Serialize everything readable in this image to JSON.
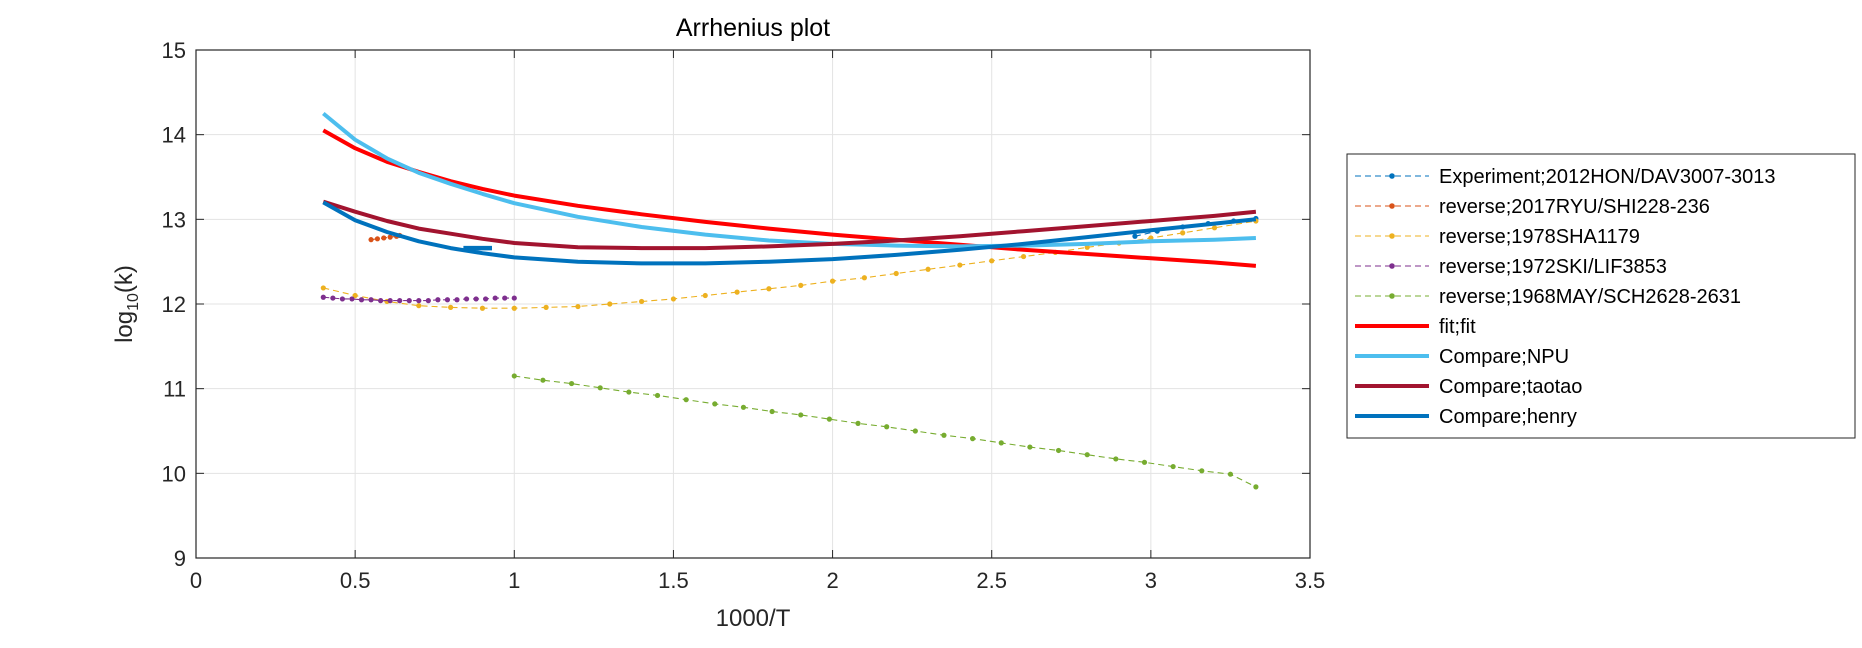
{
  "chart_data": {
    "type": "line",
    "title": "Arrhenius plot",
    "xlabel": "1000/T",
    "ylabel_base": "log",
    "ylabel_sub": "10",
    "ylabel_tail": "(k)",
    "xlim": [
      0,
      3.5
    ],
    "ylim": [
      9,
      15
    ],
    "xticks": [
      0,
      0.5,
      1,
      1.5,
      2,
      2.5,
      3,
      3.5
    ],
    "xtick_labels": [
      "0",
      "0.5",
      "1",
      "1.5",
      "2",
      "2.5",
      "3",
      "3.5"
    ],
    "yticks": [
      9,
      10,
      11,
      12,
      13,
      14,
      15
    ],
    "ytick_labels": [
      "9",
      "10",
      "11",
      "12",
      "13",
      "14",
      "15"
    ],
    "grid": true,
    "legend_position": "right-outside",
    "series": [
      {
        "name": "Experiment;2012HON/DAV3007-3013",
        "color": "#0072BD",
        "style": "dashed-dot",
        "points": [
          [
            2.95,
            12.8
          ],
          [
            3.02,
            12.86
          ],
          [
            3.1,
            12.91
          ],
          [
            3.18,
            12.95
          ],
          [
            3.26,
            12.98
          ],
          [
            3.33,
            13.01
          ]
        ]
      },
      {
        "name": "reverse;2017RYU/SHI228-236",
        "color": "#D95319",
        "style": "dashed-dot",
        "points": [
          [
            0.55,
            12.76
          ],
          [
            0.57,
            12.77
          ],
          [
            0.59,
            12.78
          ],
          [
            0.61,
            12.79
          ],
          [
            0.63,
            12.8
          ],
          [
            0.64,
            12.81
          ]
        ]
      },
      {
        "name": "reverse;1978SHA1179",
        "color": "#EDB120",
        "style": "dashed-dot",
        "points": [
          [
            0.4,
            12.19
          ],
          [
            0.5,
            12.1
          ],
          [
            0.6,
            12.03
          ],
          [
            0.7,
            11.98
          ],
          [
            0.8,
            11.96
          ],
          [
            0.9,
            11.95
          ],
          [
            1.0,
            11.95
          ],
          [
            1.1,
            11.96
          ],
          [
            1.2,
            11.97
          ],
          [
            1.3,
            12.0
          ],
          [
            1.4,
            12.03
          ],
          [
            1.5,
            12.06
          ],
          [
            1.6,
            12.1
          ],
          [
            1.7,
            12.14
          ],
          [
            1.8,
            12.18
          ],
          [
            1.9,
            12.22
          ],
          [
            2.0,
            12.27
          ],
          [
            2.1,
            12.31
          ],
          [
            2.2,
            12.36
          ],
          [
            2.3,
            12.41
          ],
          [
            2.4,
            12.46
          ],
          [
            2.5,
            12.51
          ],
          [
            2.6,
            12.56
          ],
          [
            2.7,
            12.61
          ],
          [
            2.8,
            12.67
          ],
          [
            2.9,
            12.72
          ],
          [
            3.0,
            12.78
          ],
          [
            3.1,
            12.84
          ],
          [
            3.2,
            12.9
          ],
          [
            3.33,
            12.98
          ]
        ]
      },
      {
        "name": "reverse;1972SKI/LIF3853",
        "color": "#7E2F8E",
        "style": "dashed-dot",
        "points": [
          [
            0.4,
            12.08
          ],
          [
            0.43,
            12.07
          ],
          [
            0.46,
            12.06
          ],
          [
            0.49,
            12.06
          ],
          [
            0.52,
            12.05
          ],
          [
            0.55,
            12.05
          ],
          [
            0.58,
            12.04
          ],
          [
            0.61,
            12.04
          ],
          [
            0.64,
            12.04
          ],
          [
            0.67,
            12.04
          ],
          [
            0.7,
            12.04
          ],
          [
            0.73,
            12.04
          ],
          [
            0.76,
            12.05
          ],
          [
            0.79,
            12.05
          ],
          [
            0.82,
            12.05
          ],
          [
            0.85,
            12.06
          ],
          [
            0.88,
            12.06
          ],
          [
            0.91,
            12.06
          ],
          [
            0.94,
            12.07
          ],
          [
            0.97,
            12.07
          ],
          [
            1.0,
            12.07
          ]
        ]
      },
      {
        "name": "reverse;1968MAY/SCH2628-2631",
        "color": "#77AC30",
        "style": "dashed-dot",
        "points": [
          [
            1.0,
            11.15
          ],
          [
            1.09,
            11.1
          ],
          [
            1.18,
            11.06
          ],
          [
            1.27,
            11.01
          ],
          [
            1.36,
            10.96
          ],
          [
            1.45,
            10.92
          ],
          [
            1.54,
            10.87
          ],
          [
            1.63,
            10.82
          ],
          [
            1.72,
            10.78
          ],
          [
            1.81,
            10.73
          ],
          [
            1.9,
            10.69
          ],
          [
            1.99,
            10.64
          ],
          [
            2.08,
            10.59
          ],
          [
            2.17,
            10.55
          ],
          [
            2.26,
            10.5
          ],
          [
            2.35,
            10.45
          ],
          [
            2.44,
            10.41
          ],
          [
            2.53,
            10.36
          ],
          [
            2.62,
            10.31
          ],
          [
            2.71,
            10.27
          ],
          [
            2.8,
            10.22
          ],
          [
            2.89,
            10.17
          ],
          [
            2.98,
            10.13
          ],
          [
            3.07,
            10.08
          ],
          [
            3.16,
            10.03
          ],
          [
            3.25,
            9.99
          ],
          [
            3.33,
            9.84
          ]
        ]
      },
      {
        "name": "fit;fit",
        "color": "#FF0000",
        "style": "solid",
        "points": [
          [
            0.4,
            14.05
          ],
          [
            0.5,
            13.84
          ],
          [
            0.6,
            13.68
          ],
          [
            0.7,
            13.56
          ],
          [
            0.8,
            13.45
          ],
          [
            0.9,
            13.36
          ],
          [
            1.0,
            13.28
          ],
          [
            1.2,
            13.16
          ],
          [
            1.4,
            13.06
          ],
          [
            1.6,
            12.97
          ],
          [
            1.8,
            12.89
          ],
          [
            2.0,
            12.82
          ],
          [
            2.2,
            12.76
          ],
          [
            2.4,
            12.7
          ],
          [
            2.6,
            12.64
          ],
          [
            2.8,
            12.59
          ],
          [
            3.0,
            12.54
          ],
          [
            3.2,
            12.49
          ],
          [
            3.33,
            12.45
          ]
        ]
      },
      {
        "name": "Compare;NPU",
        "color": "#4DBEEE",
        "style": "solid",
        "points": [
          [
            0.4,
            14.25
          ],
          [
            0.5,
            13.94
          ],
          [
            0.6,
            13.72
          ],
          [
            0.7,
            13.55
          ],
          [
            0.8,
            13.42
          ],
          [
            0.9,
            13.3
          ],
          [
            1.0,
            13.19
          ],
          [
            1.2,
            13.03
          ],
          [
            1.4,
            12.91
          ],
          [
            1.6,
            12.82
          ],
          [
            1.8,
            12.75
          ],
          [
            2.0,
            12.71
          ],
          [
            2.2,
            12.69
          ],
          [
            2.4,
            12.68
          ],
          [
            2.6,
            12.69
          ],
          [
            2.8,
            12.71
          ],
          [
            3.0,
            12.74
          ],
          [
            3.2,
            12.76
          ],
          [
            3.33,
            12.78
          ]
        ]
      },
      {
        "name": "Compare;taotao",
        "color": "#A2142F",
        "style": "solid",
        "points": [
          [
            0.4,
            13.21
          ],
          [
            0.5,
            13.09
          ],
          [
            0.6,
            12.98
          ],
          [
            0.7,
            12.89
          ],
          [
            0.8,
            12.83
          ],
          [
            0.9,
            12.77
          ],
          [
            1.0,
            12.72
          ],
          [
            1.2,
            12.67
          ],
          [
            1.4,
            12.66
          ],
          [
            1.6,
            12.66
          ],
          [
            1.8,
            12.68
          ],
          [
            2.0,
            12.71
          ],
          [
            2.2,
            12.75
          ],
          [
            2.4,
            12.8
          ],
          [
            2.6,
            12.86
          ],
          [
            2.8,
            12.92
          ],
          [
            3.0,
            12.98
          ],
          [
            3.2,
            13.04
          ],
          [
            3.33,
            13.09
          ]
        ]
      },
      {
        "name": "Compare;henry",
        "color": "#0072BD",
        "style": "solid",
        "points": [
          [
            0.4,
            13.2
          ],
          [
            0.5,
            12.99
          ],
          [
            0.6,
            12.85
          ],
          [
            0.7,
            12.74
          ],
          [
            0.8,
            12.66
          ],
          [
            0.9,
            12.6
          ],
          [
            1.0,
            12.55
          ],
          [
            1.2,
            12.5
          ],
          [
            1.4,
            12.48
          ],
          [
            1.6,
            12.48
          ],
          [
            1.8,
            12.5
          ],
          [
            2.0,
            12.53
          ],
          [
            2.2,
            12.58
          ],
          [
            2.4,
            12.64
          ],
          [
            2.6,
            12.71
          ],
          [
            2.8,
            12.79
          ],
          [
            3.0,
            12.87
          ],
          [
            3.2,
            12.95
          ],
          [
            3.33,
            13.0
          ]
        ]
      },
      {
        "name": "",
        "color": "#0072BD",
        "style": "segment",
        "points": [
          [
            0.84,
            12.66
          ],
          [
            0.93,
            12.66
          ]
        ]
      }
    ]
  }
}
